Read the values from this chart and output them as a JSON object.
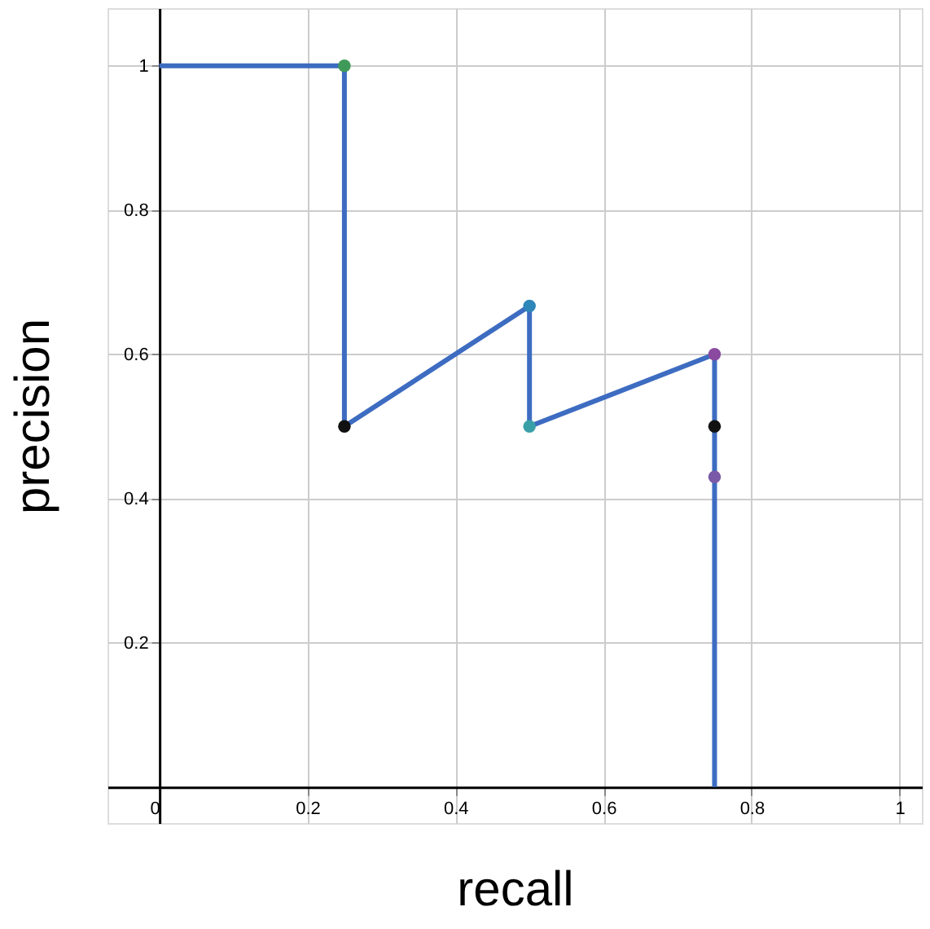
{
  "chart_data": {
    "type": "line",
    "xlabel": "recall",
    "ylabel": "precision",
    "xlim": [
      -0.07,
      1.03
    ],
    "ylim": [
      -0.05,
      1.08
    ],
    "xticks": [
      0,
      0.2,
      0.4,
      0.6,
      0.8,
      1
    ],
    "yticks": [
      0.2,
      0.4,
      0.6,
      0.8,
      1
    ],
    "grid": true,
    "legend": false,
    "series": [
      {
        "type": "line",
        "color": "#3d6cc1",
        "x": [
          0,
          0.25,
          0.25,
          0.5,
          0.5,
          0.75,
          0.75
        ],
        "values": [
          1,
          1,
          0.5,
          0.667,
          0.5,
          0.6,
          0
        ],
        "marker": "none",
        "line_style": "solid"
      },
      {
        "type": "scatter",
        "x": [
          0.25,
          0.25,
          0.5,
          0.5,
          0.75,
          0.75,
          0.75
        ],
        "values": [
          1,
          0.5,
          0.667,
          0.5,
          0.6,
          0.5,
          0.43
        ],
        "colors": [
          "#3f9a5a",
          "#111111",
          "#2f86b8",
          "#3aa0a8",
          "#8a4aa0",
          "#111111",
          "#7a5aa8"
        ],
        "marker": "circle"
      }
    ]
  }
}
